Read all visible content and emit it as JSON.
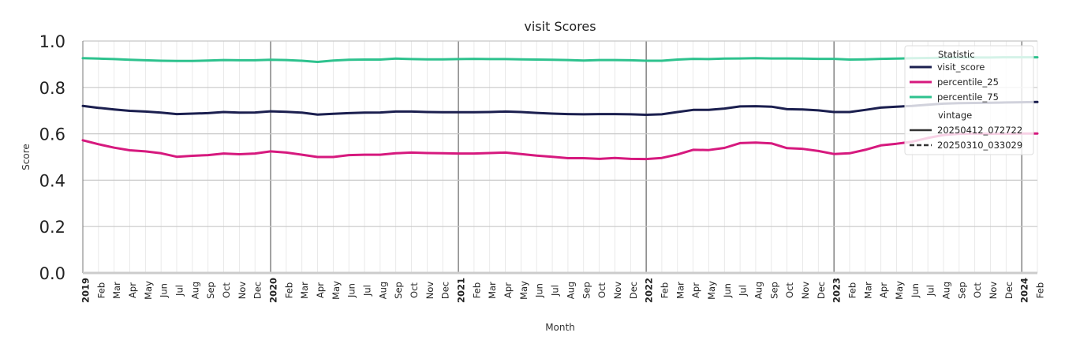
{
  "chart_data": {
    "type": "line",
    "title": "visit Scores",
    "xlabel": "Month",
    "ylabel": "Score",
    "ylim": [
      0,
      1.0
    ],
    "yticks": [
      "0.0",
      "0.2",
      "0.4",
      "0.6",
      "0.8",
      "1.0"
    ],
    "grid": true,
    "legend_position": "top-right",
    "x_start": "2019-01",
    "x_end": "2024-02",
    "month_labels": [
      "Feb",
      "Mar",
      "Apr",
      "May",
      "Jun",
      "Jul",
      "Aug",
      "Sep",
      "Oct",
      "Nov",
      "Dec"
    ],
    "year_labels": [
      "2019",
      "2020",
      "2021",
      "2022",
      "2023",
      "2024"
    ],
    "legend": {
      "title_statistic": "Statistic",
      "title_vintage": "vintage",
      "statistic_items": [
        {
          "label": "visit_score",
          "color": "#1b1f4f"
        },
        {
          "label": "percentile_25",
          "color": "#d6197e"
        },
        {
          "label": "percentile_75",
          "color": "#2ec28e"
        }
      ],
      "vintage_items": [
        {
          "label": "20250412_072722",
          "style": "solid"
        },
        {
          "label": "20250310_033029",
          "style": "dashed"
        }
      ]
    },
    "series": [
      {
        "name": "visit_score",
        "color": "#1b1f4f",
        "values": [
          0.72,
          0.712,
          0.705,
          0.699,
          0.696,
          0.691,
          0.685,
          0.687,
          0.689,
          0.694,
          0.691,
          0.692,
          0.697,
          0.695,
          0.691,
          0.683,
          0.686,
          0.689,
          0.691,
          0.692,
          0.696,
          0.696,
          0.694,
          0.693,
          0.693,
          0.693,
          0.694,
          0.696,
          0.694,
          0.69,
          0.687,
          0.685,
          0.684,
          0.685,
          0.685,
          0.684,
          0.682,
          0.684,
          0.694,
          0.703,
          0.703,
          0.709,
          0.718,
          0.719,
          0.717,
          0.706,
          0.705,
          0.701,
          0.694,
          0.694,
          0.703,
          0.713,
          0.717,
          0.72,
          0.725,
          0.73,
          0.732,
          0.733,
          0.734,
          0.735,
          0.736,
          0.737
        ]
      },
      {
        "name": "percentile_25",
        "color": "#d6197e",
        "values": [
          0.572,
          0.555,
          0.54,
          0.529,
          0.524,
          0.516,
          0.501,
          0.505,
          0.508,
          0.515,
          0.512,
          0.515,
          0.524,
          0.519,
          0.51,
          0.5,
          0.5,
          0.508,
          0.51,
          0.51,
          0.516,
          0.519,
          0.517,
          0.516,
          0.515,
          0.515,
          0.517,
          0.519,
          0.513,
          0.506,
          0.501,
          0.495,
          0.495,
          0.492,
          0.496,
          0.492,
          0.491,
          0.496,
          0.511,
          0.531,
          0.53,
          0.539,
          0.56,
          0.562,
          0.559,
          0.538,
          0.535,
          0.526,
          0.513,
          0.516,
          0.531,
          0.55,
          0.557,
          0.566,
          0.582,
          0.595,
          0.6,
          0.601,
          0.6,
          0.6,
          0.601,
          0.601
        ]
      },
      {
        "name": "percentile_75",
        "color": "#2ec28e",
        "values": [
          0.926,
          0.924,
          0.922,
          0.919,
          0.917,
          0.915,
          0.914,
          0.914,
          0.916,
          0.918,
          0.917,
          0.917,
          0.919,
          0.918,
          0.915,
          0.91,
          0.916,
          0.919,
          0.92,
          0.92,
          0.924,
          0.922,
          0.921,
          0.921,
          0.922,
          0.923,
          0.922,
          0.922,
          0.921,
          0.92,
          0.919,
          0.918,
          0.916,
          0.918,
          0.918,
          0.917,
          0.915,
          0.915,
          0.92,
          0.923,
          0.922,
          0.924,
          0.925,
          0.926,
          0.925,
          0.925,
          0.924,
          0.923,
          0.923,
          0.92,
          0.921,
          0.923,
          0.924,
          0.926,
          0.927,
          0.928,
          0.929,
          0.929,
          0.929,
          0.93,
          0.93,
          0.93
        ]
      }
    ]
  }
}
